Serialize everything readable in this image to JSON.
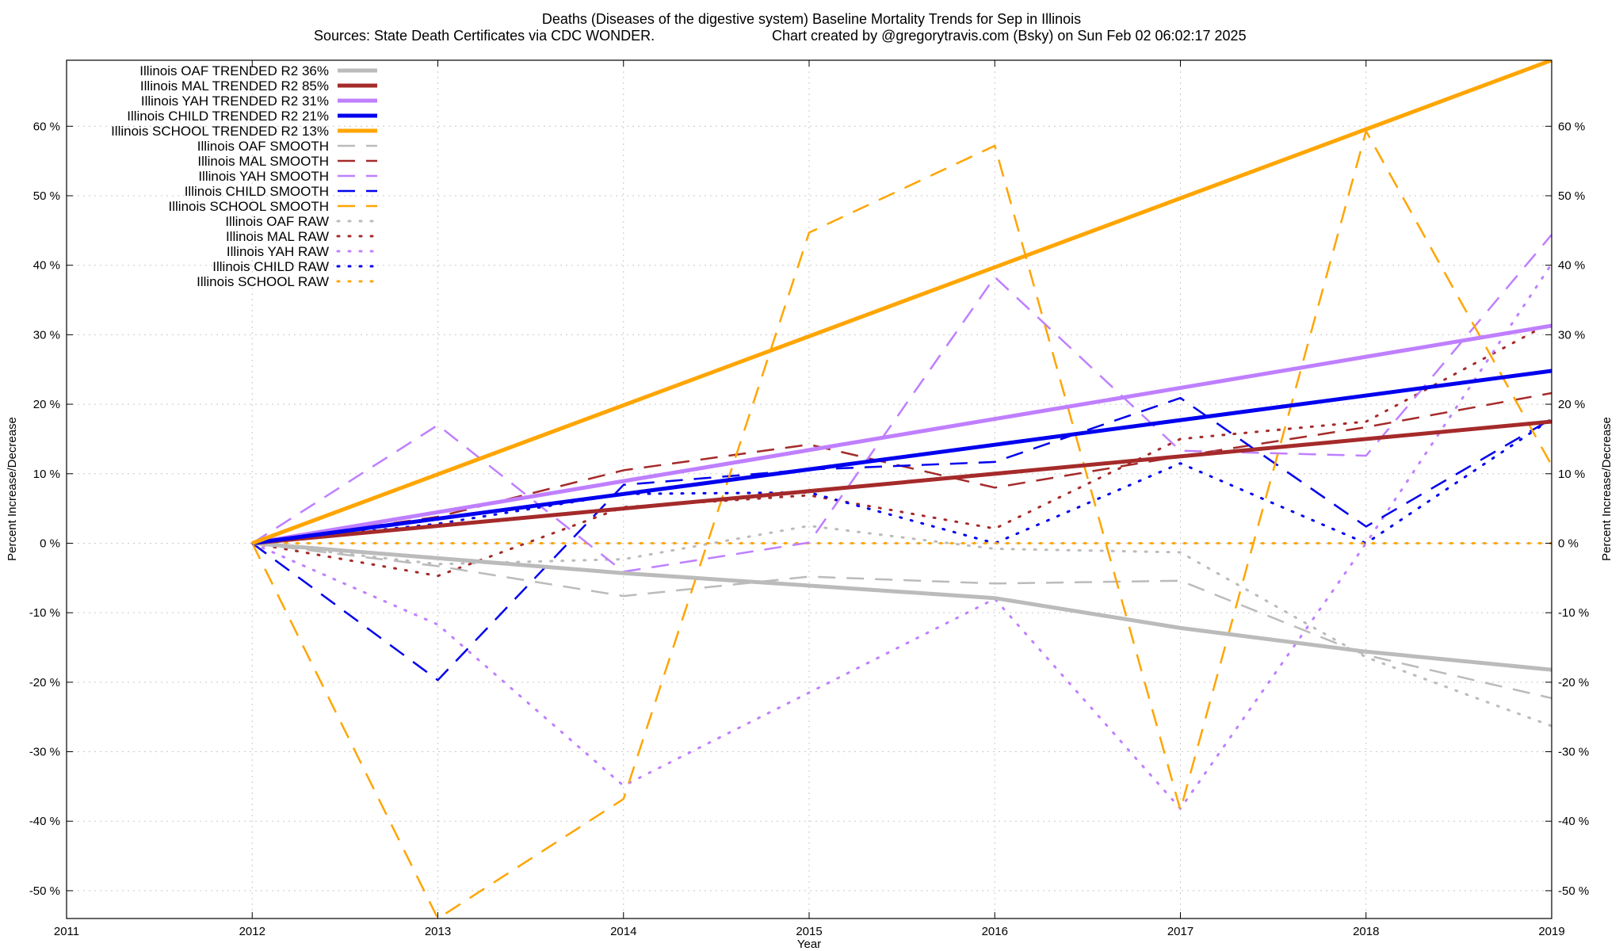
{
  "chart_data": {
    "type": "line",
    "title": "Deaths (Diseases of the digestive system)  Baseline Mortality Trends for Sep in Illinois",
    "subtitle_left": "Sources: State Death Certificates via CDC WONDER.",
    "subtitle_right": "Chart created by @gregorytravis.com (Bsky) on Sun Feb 02 06:02:17 2025",
    "xlabel": "Year",
    "ylabel": "Percent Increase/Decrease",
    "y2label": "Percent Increase/Decrease",
    "xlim": [
      2011,
      2019
    ],
    "ylim": [
      -54,
      69.5
    ],
    "x_ticks": [
      2011,
      2012,
      2013,
      2014,
      2015,
      2016,
      2017,
      2018,
      2019
    ],
    "x_tick_labels": [
      "2011",
      "2012",
      "2013",
      "2014",
      "2015",
      "2016",
      "2017",
      "2018",
      "2019"
    ],
    "y_ticks": [
      -50,
      -40,
      -30,
      -20,
      -10,
      0,
      10,
      20,
      30,
      40,
      50,
      60
    ],
    "y_tick_labels": [
      "-50 %",
      "-40 %",
      "-30 %",
      "-20 %",
      "-10 %",
      "0 %",
      "10 %",
      "20 %",
      "30 %",
      "40 %",
      "50 %",
      "60 %"
    ],
    "grid": true,
    "legend_position": "top-left",
    "x": [
      2012,
      2013,
      2014,
      2015,
      2016,
      2017,
      2018,
      2019
    ],
    "series": [
      {
        "name": "Illinois OAF TRENDED R2  36%",
        "style": "solid-thick",
        "color": "#bbbbbb",
        "x": [
          2012,
          2014,
          2016,
          2017,
          2018,
          2019
        ],
        "values": [
          0,
          -4.3,
          -7.9,
          -12.2,
          -15.6,
          -18.2
        ]
      },
      {
        "name": "Illinois MAL TRENDED R2  85%",
        "style": "solid-thick",
        "color": "#a52a2a",
        "x": [
          2012,
          2019
        ],
        "values": [
          0,
          17.5
        ]
      },
      {
        "name": "Illinois YAH TRENDED R2  31%",
        "style": "solid-thick",
        "color": "#bf7fff",
        "x": [
          2012,
          2019
        ],
        "values": [
          0,
          31.3
        ]
      },
      {
        "name": "Illinois CHILD TRENDED R2  21%",
        "style": "solid-thick",
        "color": "#0000ee",
        "x": [
          2012,
          2019
        ],
        "values": [
          0,
          24.8
        ]
      },
      {
        "name": "Illinois SCHOOL TRENDED R2  13%",
        "style": "solid-thick",
        "color": "#ffa500",
        "x": [
          2012,
          2019
        ],
        "values": [
          0,
          69.5
        ]
      },
      {
        "name": "Illinois OAF SMOOTH",
        "style": "dashed",
        "color": "#bbbbbb",
        "x": [
          2012,
          2013,
          2014,
          2015,
          2016,
          2017,
          2018,
          2019
        ],
        "values": [
          0,
          -3.3,
          -7.6,
          -4.8,
          -5.8,
          -5.4,
          -16.1,
          -22.3
        ]
      },
      {
        "name": "Illinois MAL SMOOTH",
        "style": "dashed",
        "color": "#a52a2a",
        "x": [
          2012,
          2013,
          2014,
          2015,
          2016,
          2017,
          2018,
          2019
        ],
        "values": [
          0,
          3.8,
          10.5,
          14.2,
          8.0,
          12.5,
          16.7,
          21.6
        ]
      },
      {
        "name": "Illinois YAH SMOOTH",
        "style": "dashed",
        "color": "#bf7fff",
        "x": [
          2012,
          2013,
          2014,
          2015,
          2016,
          2017,
          2018,
          2019
        ],
        "values": [
          0,
          17.0,
          -4.1,
          0.1,
          38.3,
          13.3,
          12.6,
          44.4
        ]
      },
      {
        "name": "Illinois CHILD SMOOTH",
        "style": "dashed",
        "color": "#0000ee",
        "x": [
          2012,
          2013,
          2014,
          2015,
          2016,
          2017,
          2018,
          2019
        ],
        "values": [
          0,
          -19.7,
          8.4,
          10.6,
          11.7,
          20.9,
          2.4,
          17.9
        ]
      },
      {
        "name": "Illinois SCHOOL SMOOTH",
        "style": "dashed",
        "color": "#ffa500",
        "x": [
          2012,
          2013,
          2014,
          2015,
          2016,
          2017,
          2018,
          2019
        ],
        "values": [
          0,
          -54.0,
          -36.8,
          44.7,
          57.2,
          -38.4,
          59.3,
          11.2
        ]
      },
      {
        "name": "Illinois OAF RAW",
        "style": "dotted",
        "color": "#bbbbbb",
        "x": [
          2012,
          2013,
          2014,
          2015,
          2016,
          2017,
          2018,
          2019
        ],
        "values": [
          0,
          -3.0,
          -2.3,
          2.5,
          -0.8,
          -1.3,
          -16.4,
          -26.3
        ]
      },
      {
        "name": "Illinois MAL RAW",
        "style": "dotted",
        "color": "#a52a2a",
        "x": [
          2012,
          2013,
          2014,
          2015,
          2016,
          2017,
          2018,
          2019
        ],
        "values": [
          0,
          -4.7,
          5.2,
          6.9,
          2.1,
          15.0,
          17.5,
          31.8
        ]
      },
      {
        "name": "Illinois YAH RAW",
        "style": "dotted",
        "color": "#bf7fff",
        "x": [
          2012,
          2013,
          2014,
          2015,
          2016,
          2017,
          2018,
          2019
        ],
        "values": [
          0,
          -11.7,
          -34.9,
          -21.5,
          -8.0,
          -38.2,
          0.0,
          40.2
        ]
      },
      {
        "name": "Illinois CHILD RAW",
        "style": "dotted",
        "color": "#0000ee",
        "x": [
          2012,
          2013,
          2014,
          2015,
          2016,
          2017,
          2018,
          2019
        ],
        "values": [
          0,
          2.8,
          7.1,
          7.3,
          0.0,
          11.5,
          0.0,
          17.9
        ]
      },
      {
        "name": "Illinois SCHOOL RAW",
        "style": "dotted",
        "color": "#ffa500",
        "x": [
          2012,
          2013,
          2014,
          2015,
          2016,
          2017,
          2018,
          2019
        ],
        "values": [
          0,
          0,
          0,
          0,
          0,
          0,
          0,
          0
        ]
      }
    ]
  }
}
